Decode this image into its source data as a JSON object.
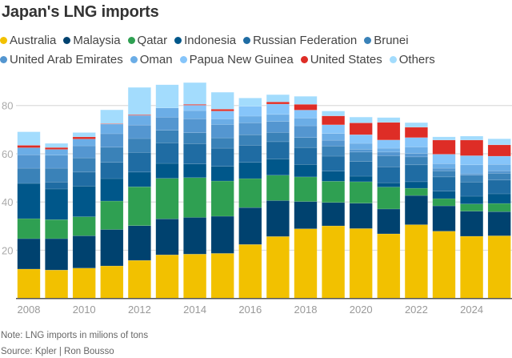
{
  "chart_data": {
    "type": "bar",
    "stacked": true,
    "title": "Japan's LNG imports",
    "xlabel": "",
    "ylabel": "",
    "ylim": [
      0,
      90
    ],
    "yticks": [
      20,
      40,
      60,
      80
    ],
    "xtick_labels": [
      "2008",
      "2010",
      "2012",
      "2014",
      "2016",
      "2018",
      "2020",
      "2022",
      "2024"
    ],
    "grid": true,
    "legend_position": "top",
    "categories": [
      "2008",
      "2009",
      "2010",
      "2011",
      "2012",
      "2013",
      "2014",
      "2015",
      "2016",
      "2017",
      "2018",
      "2019",
      "2020",
      "2021",
      "2022",
      "2023",
      "2024",
      "2025"
    ],
    "series": [
      {
        "name": "Australia",
        "color": "#f2c100",
        "values": [
          12.2,
          11.8,
          12.6,
          13.5,
          15.8,
          18.1,
          18.4,
          18.7,
          22.4,
          25.7,
          28.9,
          30.1,
          29.0,
          26.8,
          30.6,
          27.9,
          25.8,
          26.0
        ]
      },
      {
        "name": "Malaysia",
        "color": "#00426f",
        "values": [
          12.6,
          13.0,
          13.4,
          15.1,
          14.4,
          14.9,
          15.2,
          15.4,
          15.3,
          14.9,
          11.3,
          9.7,
          10.5,
          10.3,
          12.1,
          10.5,
          10.4,
          10.0
        ]
      },
      {
        "name": "Qatar",
        "color": "#2fa052",
        "values": [
          8.3,
          7.9,
          7.9,
          11.8,
          16.1,
          16.8,
          16.5,
          14.6,
          12.0,
          10.5,
          10.2,
          8.8,
          8.9,
          9.1,
          3.0,
          3.0,
          3.0,
          3.4
        ]
      },
      {
        "name": "Indonesia",
        "color": "#00578a",
        "values": [
          14.6,
          12.7,
          12.7,
          9.3,
          6.1,
          6.2,
          5.7,
          6.1,
          6.7,
          6.7,
          5.2,
          4.2,
          2.3,
          1.8,
          2.7,
          3.1,
          3.2,
          4.0
        ]
      },
      {
        "name": "Russian Federation",
        "color": "#1f6ca3",
        "values": [
          0,
          2.9,
          5.8,
          6.7,
          8.1,
          8.5,
          8.4,
          7.5,
          7.1,
          7.2,
          7.0,
          6.2,
          6.1,
          6.6,
          7.0,
          5.9,
          5.8,
          5.7
        ]
      },
      {
        "name": "Brunei",
        "color": "#3a82b8",
        "values": [
          6.3,
          5.7,
          5.9,
          6.3,
          5.8,
          5.2,
          4.5,
          4.3,
          4.4,
          3.8,
          4.1,
          4.2,
          3.9,
          4.6,
          3.3,
          2.5,
          2.9,
          2.8
        ]
      },
      {
        "name": "United Arab Emirates",
        "color": "#5496d0",
        "values": [
          5.5,
          5.4,
          5.0,
          5.6,
          5.6,
          5.4,
          5.8,
          5.5,
          4.9,
          4.6,
          4.9,
          2.4,
          1.1,
          1.5,
          1.4,
          1.1,
          0.6,
          1.0
        ]
      },
      {
        "name": "Oman",
        "color": "#6badE6",
        "values": [
          3.0,
          2.4,
          2.8,
          4.0,
          4.0,
          3.9,
          3.4,
          2.4,
          2.8,
          2.9,
          3.2,
          2.8,
          2.5,
          1.6,
          2.7,
          1.9,
          3.7,
          2.7
        ]
      },
      {
        "name": "Papua New Guinea",
        "color": "#86c5fa",
        "values": [
          0,
          0,
          0,
          0,
          0,
          0,
          2.2,
          3.2,
          4.1,
          4.3,
          3.3,
          3.6,
          3.6,
          3.4,
          3.9,
          3.9,
          3.8,
          3.4
        ]
      },
      {
        "name": "United States",
        "color": "#de2d26",
        "values": [
          1.0,
          0.8,
          0.9,
          0.2,
          0.3,
          0,
          0.4,
          0.8,
          0,
          0.9,
          2.4,
          3.7,
          4.9,
          7.3,
          4.3,
          5.9,
          6.5,
          4.7
        ]
      },
      {
        "name": "Others",
        "color": "#a3dcfd",
        "values": [
          5.6,
          1.7,
          1.8,
          5.7,
          11.3,
          9.6,
          9.0,
          7.0,
          3.4,
          3.0,
          3.3,
          2.0,
          2.4,
          2.0,
          1.9,
          1.3,
          1.6,
          2.5
        ]
      }
    ]
  },
  "footer": {
    "note": "Note: LNG imports in milions of tons",
    "source": "Source: Kpler  | Ron Bousso"
  }
}
